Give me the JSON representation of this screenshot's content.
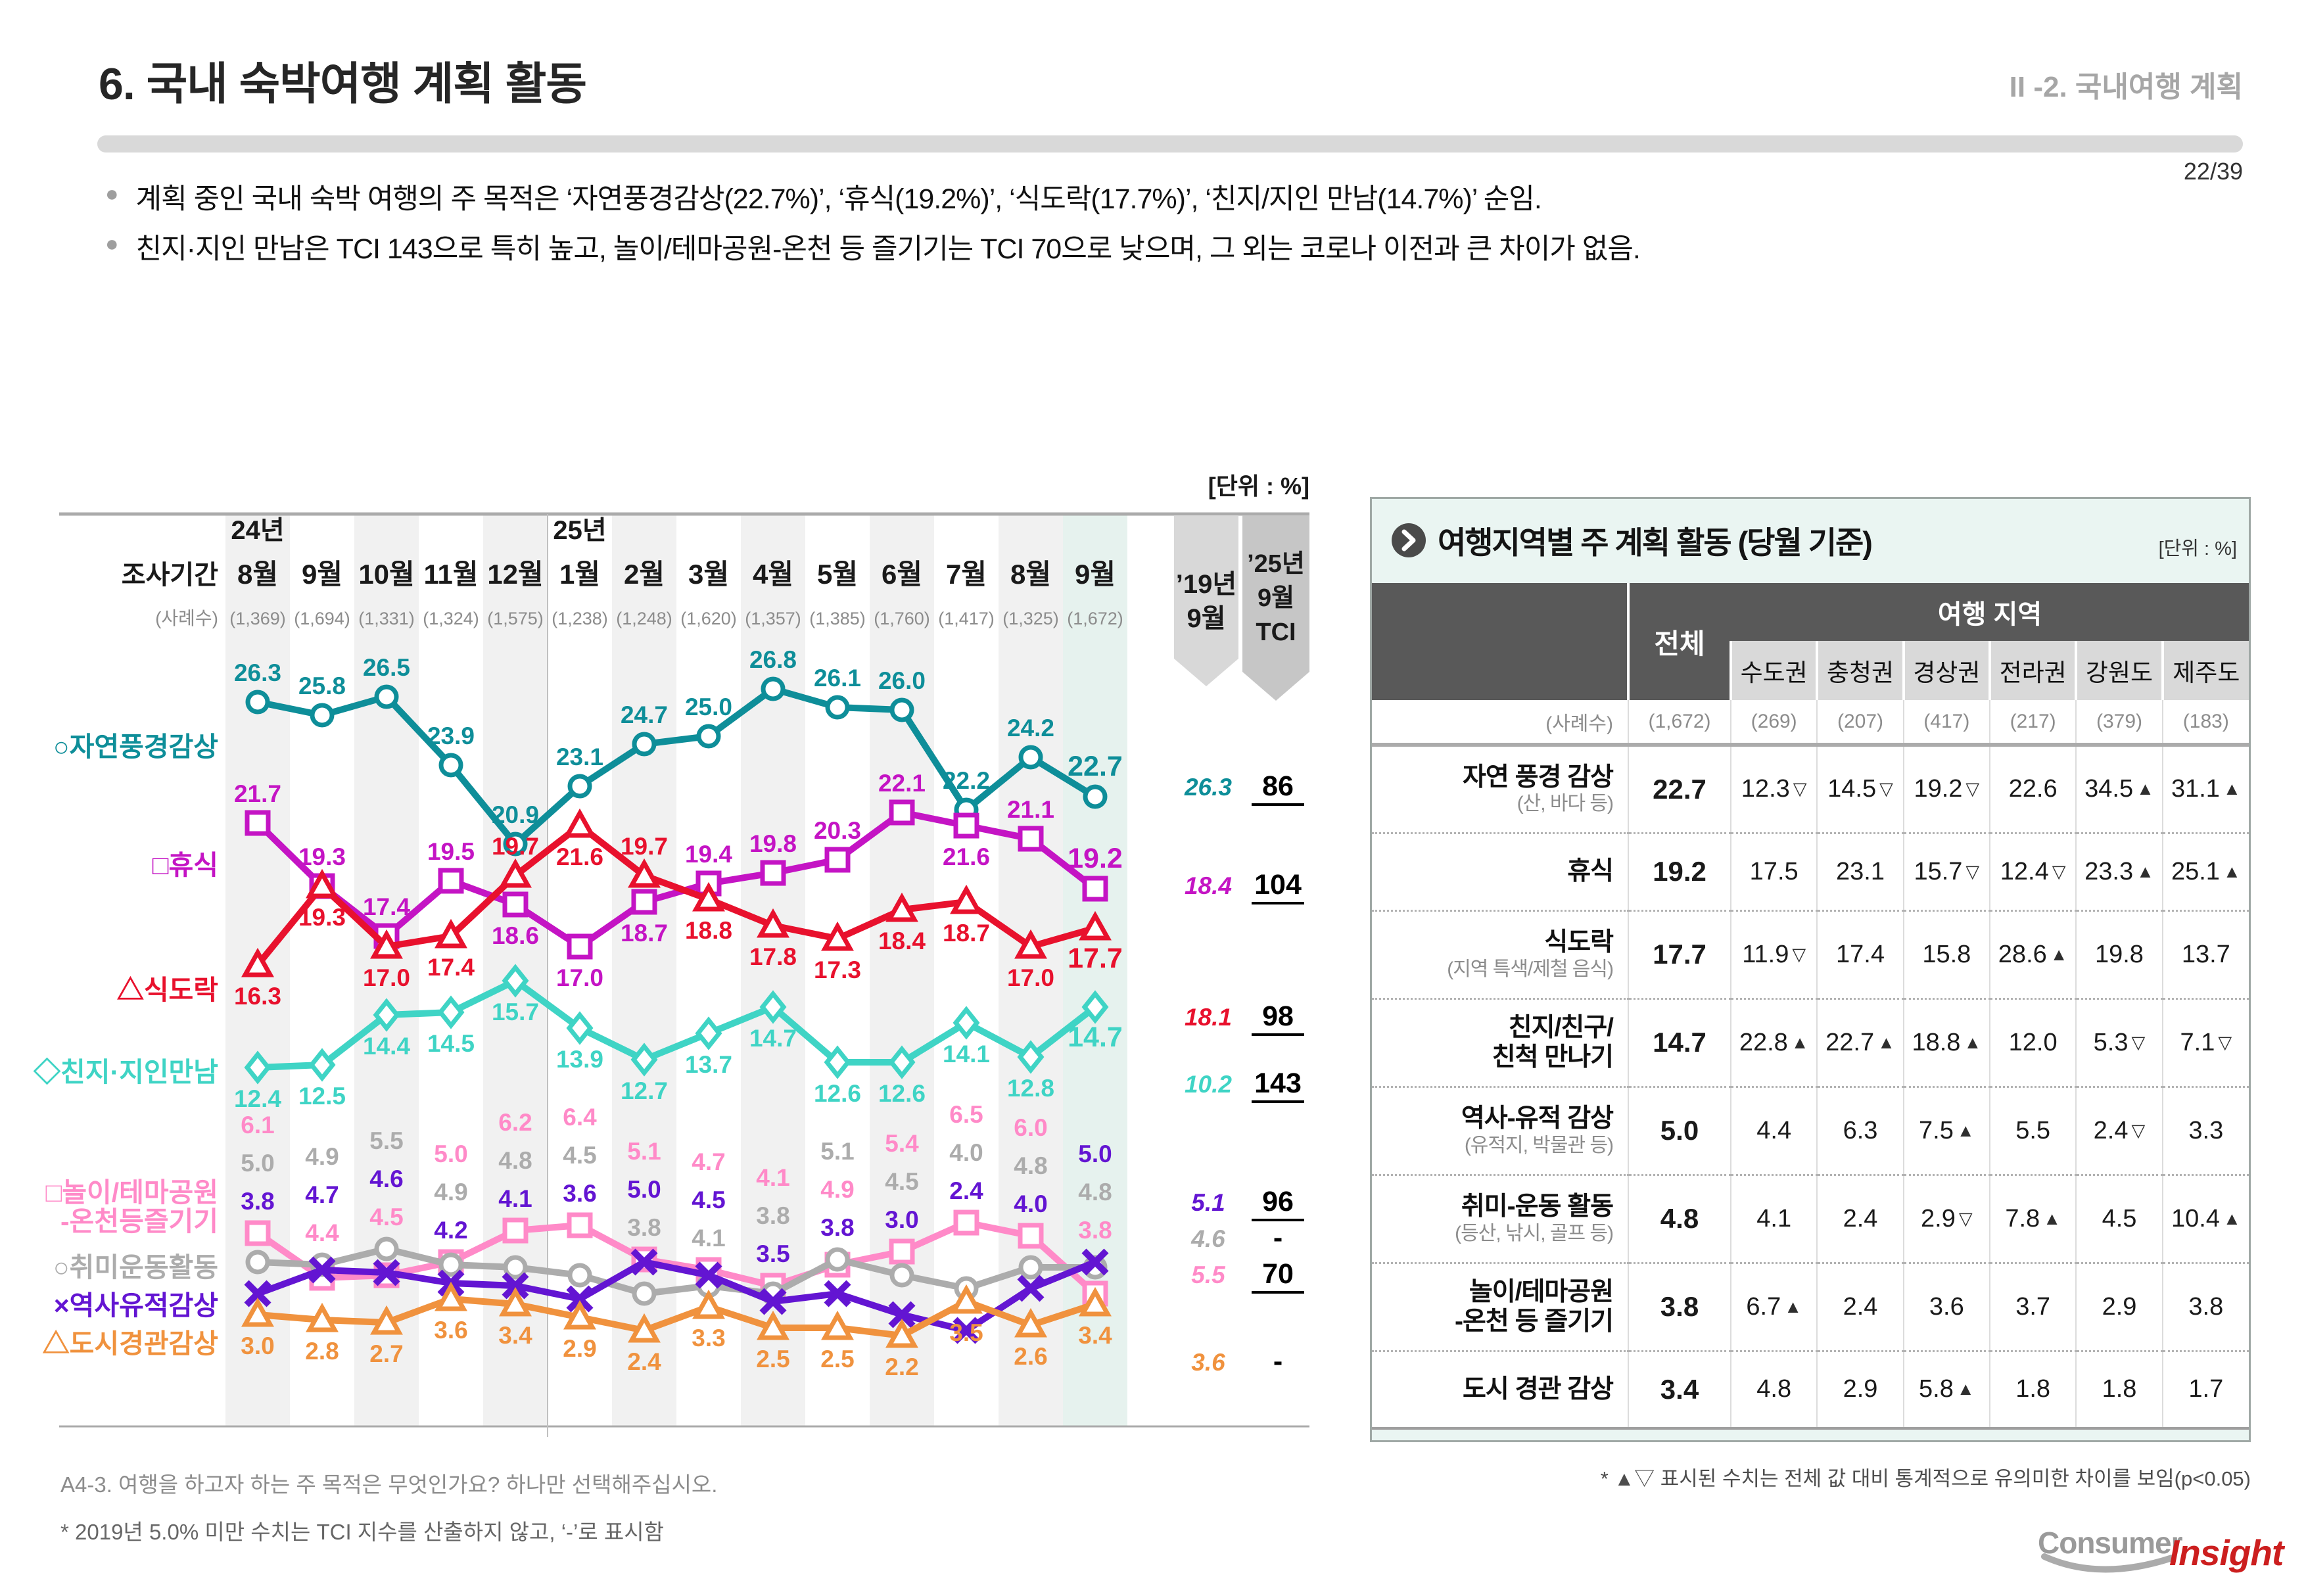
{
  "page": {
    "title": "6. 국내 숙박여행 계획 활동",
    "section": "II -2. 국내여행 계획",
    "page_num": "22/39",
    "bullets": [
      "계획 중인 국내 숙박 여행의 주 목적은 ‘자연풍경감상(22.7%)’, ‘휴식(19.2%)’, ‘식도락(17.7%)’, ‘친지/지인 만남(14.7%)’ 순임.",
      "친지·지인 만남은 TCI 143으로 특히 높고, 놀이/테마공원-온천 등 즐기기는 TCI 70으로 낮으며, 그 외는 코로나 이전과 큰 차이가 없음."
    ]
  },
  "chart": {
    "chart_data": {
      "type": "line",
      "unit_label": "[단위 : %]",
      "period_label": "조사기간",
      "sample_label": "(사례수)",
      "year_groups": [
        {
          "year": "24년",
          "start_index": 0
        },
        {
          "year": "25년",
          "start_index": 5
        }
      ],
      "categories": [
        "8월",
        "9월",
        "10월",
        "11월",
        "12월",
        "1월",
        "2월",
        "3월",
        "4월",
        "5월",
        "6월",
        "7월",
        "8월",
        "9월"
      ],
      "samples": [
        "(1,369)",
        "(1,694)",
        "(1,331)",
        "(1,324)",
        "(1,575)",
        "(1,238)",
        "(1,248)",
        "(1,620)",
        "(1,357)",
        "(1,385)",
        "(1,760)",
        "(1,417)",
        "(1,325)",
        "(1,672)"
      ],
      "ref_column_header": "’19년 9월",
      "tci_column_header": "’25년 9월 TCI",
      "series": [
        {
          "name": "자연풍경감상",
          "marker": "circle",
          "color": "#0E8E99",
          "values": [
            26.3,
            25.8,
            26.5,
            23.9,
            20.9,
            23.1,
            24.7,
            25.0,
            26.8,
            26.1,
            26.0,
            22.2,
            24.2,
            22.7
          ],
          "ref_2019": "26.3",
          "tci": "86"
        },
        {
          "name": "휴식",
          "marker": "square",
          "color": "#C414C4",
          "values": [
            21.7,
            19.3,
            17.4,
            19.5,
            18.6,
            17.0,
            18.7,
            19.4,
            19.8,
            20.3,
            22.1,
            21.6,
            21.1,
            19.2
          ],
          "ref_2019": "18.4",
          "tci": "104"
        },
        {
          "name": "식도락",
          "marker": "triangle",
          "color": "#E8112D",
          "values": [
            16.3,
            19.3,
            17.0,
            17.4,
            19.7,
            21.6,
            19.7,
            18.8,
            17.8,
            17.3,
            18.4,
            18.7,
            17.0,
            17.7
          ],
          "ref_2019": "18.1",
          "tci": "98"
        },
        {
          "name": "친지·지인만남",
          "marker": "diamond",
          "color": "#3FD4C5",
          "values": [
            12.4,
            12.5,
            14.4,
            14.5,
            15.7,
            13.9,
            12.7,
            13.7,
            14.7,
            12.6,
            12.6,
            14.1,
            12.8,
            14.7
          ],
          "ref_2019": "10.2",
          "tci": "143"
        },
        {
          "name": "놀이/테마공원",
          "name2": "-온천등즐기기",
          "marker": "square",
          "color": "#FF8AC8",
          "values": [
            6.1,
            4.4,
            4.5,
            5.0,
            6.2,
            6.4,
            5.1,
            4.7,
            4.1,
            4.9,
            5.4,
            6.5,
            6.0,
            3.8
          ],
          "ref_2019": "5.5",
          "tci": "70"
        },
        {
          "name": "취미운동활동",
          "marker": "circle",
          "color": "#ACACAC",
          "values": [
            5.0,
            4.9,
            5.5,
            4.9,
            4.8,
            4.5,
            3.8,
            4.1,
            3.8,
            5.1,
            4.5,
            4.0,
            4.8,
            4.8
          ],
          "ref_2019": "4.6",
          "tci": "-"
        },
        {
          "name": "역사유적감상",
          "marker": "x",
          "color": "#6315D2",
          "values": [
            3.8,
            4.7,
            4.6,
            4.2,
            4.1,
            3.6,
            5.0,
            4.5,
            3.5,
            3.8,
            3.0,
            2.4,
            4.0,
            5.0
          ],
          "ref_2019": "5.1",
          "tci": "96"
        },
        {
          "name": "도시경관감상",
          "marker": "triangle",
          "color": "#F0923E",
          "values": [
            3.0,
            2.8,
            2.7,
            3.6,
            3.4,
            2.9,
            2.4,
            3.3,
            2.5,
            2.5,
            2.2,
            3.5,
            2.6,
            3.4
          ],
          "ref_2019": "3.6",
          "tci": "-"
        }
      ]
    },
    "footnote_question": "A4-3. 여행을 하고자 하는 주 목적은 무엇인가요? 하나만 선택해주십시오.",
    "footnote_tci": "* 2019년 5.0% 미만 수치는 TCI 지수를 산출하지 않고, ‘-’로 표시함"
  },
  "panel": {
    "title": "여행지역별 주 계획 활동 (당월 기준)",
    "unit": "[단위 : %]",
    "col_group": "여행 지역",
    "total_label": "전체",
    "sample_label": "(사례수)",
    "regions": [
      "수도권",
      "충청권",
      "경상권",
      "전라권",
      "강원도",
      "제주도"
    ],
    "samples": [
      "(1,672)",
      "(269)",
      "(207)",
      "(417)",
      "(217)",
      "(379)",
      "(183)"
    ],
    "rows": [
      {
        "label": "자연 풍경 감상",
        "sub": "(산, 바다 등)",
        "total": "22.7",
        "cells": [
          {
            "v": "12.3",
            "m": "down"
          },
          {
            "v": "14.5",
            "m": "down"
          },
          {
            "v": "19.2",
            "m": "down"
          },
          {
            "v": "22.6",
            "m": ""
          },
          {
            "v": "34.5",
            "m": "up"
          },
          {
            "v": "31.1",
            "m": "up"
          }
        ]
      },
      {
        "label": "휴식",
        "sub": "",
        "total": "19.2",
        "cells": [
          {
            "v": "17.5",
            "m": ""
          },
          {
            "v": "23.1",
            "m": ""
          },
          {
            "v": "15.7",
            "m": "down"
          },
          {
            "v": "12.4",
            "m": "down"
          },
          {
            "v": "23.3",
            "m": "up"
          },
          {
            "v": "25.1",
            "m": "up"
          }
        ]
      },
      {
        "label": "식도락",
        "sub": "(지역 특색/제철 음식)",
        "total": "17.7",
        "cells": [
          {
            "v": "11.9",
            "m": "down"
          },
          {
            "v": "17.4",
            "m": ""
          },
          {
            "v": "15.8",
            "m": ""
          },
          {
            "v": "28.6",
            "m": "up"
          },
          {
            "v": "19.8",
            "m": ""
          },
          {
            "v": "13.7",
            "m": ""
          }
        ]
      },
      {
        "label": "친지/친구/",
        "label2": "친척 만나기",
        "sub": "",
        "total": "14.7",
        "cells": [
          {
            "v": "22.8",
            "m": "up"
          },
          {
            "v": "22.7",
            "m": "up"
          },
          {
            "v": "18.8",
            "m": "up"
          },
          {
            "v": "12.0",
            "m": ""
          },
          {
            "v": "5.3",
            "m": "down"
          },
          {
            "v": "7.1",
            "m": "down"
          }
        ]
      },
      {
        "label": "역사-유적 감상",
        "sub": "(유적지, 박물관 등)",
        "total": "5.0",
        "cells": [
          {
            "v": "4.4",
            "m": ""
          },
          {
            "v": "6.3",
            "m": ""
          },
          {
            "v": "7.5",
            "m": "up"
          },
          {
            "v": "5.5",
            "m": ""
          },
          {
            "v": "2.4",
            "m": "down"
          },
          {
            "v": "3.3",
            "m": ""
          }
        ]
      },
      {
        "label": "취미-운동 활동",
        "sub": "(등산, 낚시, 골프 등)",
        "total": "4.8",
        "cells": [
          {
            "v": "4.1",
            "m": ""
          },
          {
            "v": "2.4",
            "m": ""
          },
          {
            "v": "2.9",
            "m": "down"
          },
          {
            "v": "7.8",
            "m": "up"
          },
          {
            "v": "4.5",
            "m": ""
          },
          {
            "v": "10.4",
            "m": "up"
          }
        ]
      },
      {
        "label": "놀이/테마공원",
        "label2": "-온천 등 즐기기",
        "sub": "",
        "total": "3.8",
        "cells": [
          {
            "v": "6.7",
            "m": "up"
          },
          {
            "v": "2.4",
            "m": ""
          },
          {
            "v": "3.6",
            "m": ""
          },
          {
            "v": "3.7",
            "m": ""
          },
          {
            "v": "2.9",
            "m": ""
          },
          {
            "v": "3.8",
            "m": ""
          }
        ]
      },
      {
        "label": "도시 경관 감상",
        "sub": "",
        "total": "3.4",
        "cells": [
          {
            "v": "4.8",
            "m": ""
          },
          {
            "v": "2.9",
            "m": ""
          },
          {
            "v": "5.8",
            "m": "up"
          },
          {
            "v": "1.8",
            "m": ""
          },
          {
            "v": "1.8",
            "m": ""
          },
          {
            "v": "1.7",
            "m": ""
          }
        ]
      }
    ],
    "footnote": "* ▲▽ 표시된 수치는 전체 값 대비 통계적으로 유의미한 차이를 보임(p<0.05)"
  },
  "logo": {
    "consumer": "Consumer",
    "insight": "Insight"
  }
}
